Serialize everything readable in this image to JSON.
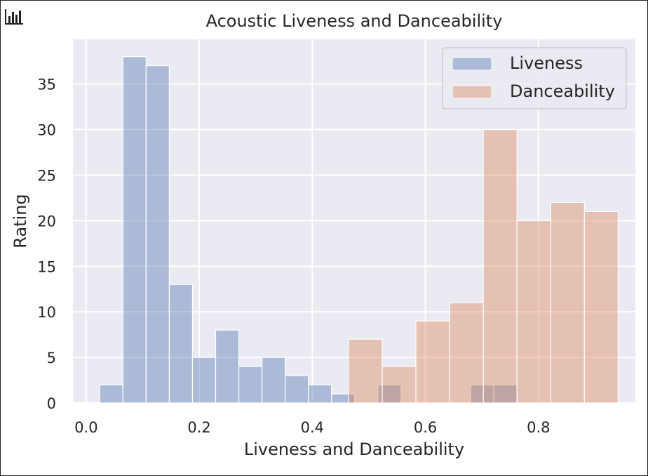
{
  "chart_data": {
    "type": "bar",
    "subtype": "overlaid-histogram",
    "title": "Acoustic Liveness and Danceability",
    "xlabel": "Liveness and Danceability",
    "ylabel": "Rating",
    "xlim": [
      -0.0234,
      0.9714
    ],
    "ylim": [
      0,
      39.9
    ],
    "xticks": [
      "0.0",
      "0.2",
      "0.4",
      "0.6",
      "0.8"
    ],
    "yticks": [
      "0",
      "5",
      "10",
      "15",
      "20",
      "25",
      "30",
      "35"
    ],
    "grid": true,
    "legend_position": "top-right",
    "series": [
      {
        "name": "Liveness",
        "color": "#4c72b0",
        "bin_edges": [
          0.024,
          0.065,
          0.106,
          0.147,
          0.188,
          0.229,
          0.27,
          0.311,
          0.352,
          0.393,
          0.434,
          0.475,
          0.516,
          0.557,
          0.598,
          0.639,
          0.68,
          0.721,
          0.762,
          0.803
        ],
        "values": [
          2,
          38,
          37,
          13,
          5,
          8,
          4,
          5,
          3,
          2,
          1,
          0,
          2,
          0,
          0,
          0,
          2,
          2,
          0
        ]
      },
      {
        "name": "Danceability",
        "color": "#dd8452",
        "bin_edges": [
          0.464,
          0.5236,
          0.5832,
          0.6428,
          0.7024,
          0.762,
          0.8216,
          0.8812,
          0.9408
        ],
        "values": [
          7,
          4,
          9,
          11,
          30,
          20,
          22,
          21
        ]
      }
    ]
  },
  "ui": {
    "chart_icon": "bar-chart-icon"
  }
}
